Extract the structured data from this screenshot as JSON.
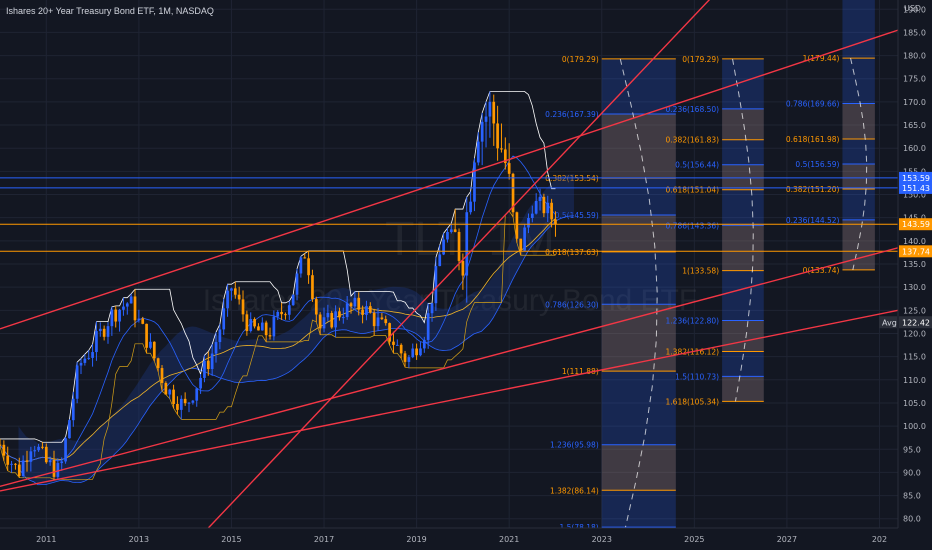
{
  "header": {
    "title": "Ishares 20+ Year Treasury Bond ETF, 1M, NASDAQ"
  },
  "watermark": {
    "symbol": "TLT, 1M",
    "name": "Ishares 20+ Year Treasury Bond ETF"
  },
  "colors": {
    "background": "#131722",
    "grid": "#1f2433",
    "up": "#2962ff",
    "down": "#ff9800",
    "trend": "#f23645",
    "fib_blue": "#2962ff",
    "fib_orange": "#ff9800",
    "cloud": "#1e3a8a",
    "white": "#ffffff"
  },
  "chart_data": {
    "type": "candlestick",
    "currency_label": "USD",
    "x_ticks": [
      "2011",
      "2013",
      "2015",
      "2017",
      "2019",
      "2021",
      "2023",
      "2025",
      "2027",
      "202"
    ],
    "y_ticks": [
      80,
      85,
      90,
      95,
      100,
      105,
      110,
      115,
      120,
      125,
      130,
      135,
      140,
      145,
      150,
      155,
      160,
      165,
      170,
      175,
      180,
      185,
      190
    ],
    "ylim": [
      78,
      192
    ],
    "xlim": [
      2010.0,
      2029.4
    ],
    "price_labels": [
      {
        "value": 153.59,
        "text": "153.59",
        "color": "#2962ff"
      },
      {
        "value": 151.43,
        "text": "151.43",
        "color": "#2962ff"
      },
      {
        "value": 143.59,
        "text": "143.59",
        "color": "#ff9800"
      },
      {
        "value": 137.74,
        "text": "137.74",
        "color": "#ff9800"
      },
      {
        "value": 122.42,
        "text": "122.42",
        "color": "#2a2e39"
      }
    ],
    "avg_label": "Avg",
    "horizontal_lines": [
      {
        "value": 153.59,
        "color": "#2962ff"
      },
      {
        "value": 151.43,
        "color": "#2962ff"
      },
      {
        "value": 143.59,
        "color": "#ff9800"
      },
      {
        "value": 137.74,
        "color": "#ff9800"
      }
    ],
    "candles_anchor": [
      [
        2010.0,
        96
      ],
      [
        2010.4,
        90
      ],
      [
        2010.7,
        97
      ],
      [
        2011.0,
        92
      ],
      [
        2011.3,
        90
      ],
      [
        2011.7,
        113
      ],
      [
        2012.0,
        117
      ],
      [
        2012.4,
        124
      ],
      [
        2012.8,
        127
      ],
      [
        2013.2,
        118
      ],
      [
        2013.6,
        108
      ],
      [
        2014.0,
        104
      ],
      [
        2014.6,
        116
      ],
      [
        2015.0,
        130
      ],
      [
        2015.4,
        121
      ],
      [
        2015.8,
        120
      ],
      [
        2016.3,
        128
      ],
      [
        2016.6,
        138
      ],
      [
        2016.9,
        121
      ],
      [
        2017.4,
        125
      ],
      [
        2017.8,
        126
      ],
      [
        2018.3,
        121
      ],
      [
        2018.8,
        114
      ],
      [
        2019.2,
        121
      ],
      [
        2019.6,
        142
      ],
      [
        2020.0,
        138
      ],
      [
        2020.3,
        166
      ],
      [
        2020.6,
        168
      ],
      [
        2020.9,
        158
      ],
      [
        2021.2,
        137
      ],
      [
        2021.5,
        148
      ],
      [
        2021.8,
        147
      ],
      [
        2022.0,
        143.59
      ]
    ],
    "trend_lines": [
      {
        "from": [
          2010.0,
          121
        ],
        "to": [
          2029.4,
          185.5
        ]
      },
      {
        "from": [
          2010.0,
          87
        ],
        "to": [
          2029.4,
          138.5
        ]
      },
      {
        "from": [
          2010.0,
          86
        ],
        "to": [
          2029.4,
          125
        ]
      },
      {
        "from": [
          2014.5,
          78
        ],
        "to": [
          2029.4,
          235
        ]
      }
    ],
    "fib_blocks": [
      {
        "x0": 2023.0,
        "x1": 2024.6,
        "top": 179.29,
        "bottom": 78.18,
        "levels": [
          {
            "value": 179.29,
            "label": "0(179.29)",
            "color": "#ff9800"
          },
          {
            "value": 167.39,
            "label": "0.236(167.39)",
            "color": "#2962ff"
          },
          {
            "value": 153.54,
            "label": "0.382(153.54)",
            "color": "#ff9800"
          },
          {
            "value": 145.59,
            "label": "0.5(145.59)",
            "color": "#2962ff"
          },
          {
            "value": 137.63,
            "label": "0.618(137.63)",
            "color": "#ff9800"
          },
          {
            "value": 126.3,
            "label": "0.786(126.30)",
            "color": "#2962ff"
          },
          {
            "value": 111.88,
            "label": "1(111.88)",
            "color": "#ff9800"
          },
          {
            "value": 95.98,
            "label": "1.236(95.98)",
            "color": "#2962ff"
          },
          {
            "value": 86.14,
            "label": "1.382(86.14)",
            "color": "#ff9800"
          },
          {
            "value": 78.18,
            "label": "1.5(78.18)",
            "color": "#2962ff"
          }
        ]
      },
      {
        "x0": 2025.6,
        "x1": 2026.5,
        "top": 179.29,
        "bottom": 105.34,
        "levels": [
          {
            "value": 179.29,
            "label": "0(179.29)",
            "color": "#ff9800"
          },
          {
            "value": 168.5,
            "label": "0.236(168.50)",
            "color": "#2962ff"
          },
          {
            "value": 161.83,
            "label": "0.382(161.83)",
            "color": "#ff9800"
          },
          {
            "value": 156.44,
            "label": "0.5(156.44)",
            "color": "#2962ff"
          },
          {
            "value": 151.04,
            "label": "0.618(151.04)",
            "color": "#ff9800"
          },
          {
            "value": 143.36,
            "label": "0.786(143.36)",
            "color": "#2962ff"
          },
          {
            "value": 133.58,
            "label": "1(133.58)",
            "color": "#ff9800"
          },
          {
            "value": 122.8,
            "label": "1.236(122.80)",
            "color": "#2962ff"
          },
          {
            "value": 116.12,
            "label": "1.382(116.12)",
            "color": "#ff9800"
          },
          {
            "value": 110.73,
            "label": "1.5(110.73)",
            "color": "#2962ff"
          },
          {
            "value": 105.34,
            "label": "1.618(105.34)",
            "color": "#ff9800"
          }
        ]
      },
      {
        "x0": 2028.2,
        "x1": 2028.9,
        "top": 192,
        "bottom": 133.74,
        "levels": [
          {
            "value": 179.44,
            "label": "1(179.44)",
            "color": "#ff9800"
          },
          {
            "value": 169.66,
            "label": "0.786(169.66)",
            "color": "#2962ff"
          },
          {
            "value": 161.98,
            "label": "0.618(161.98)",
            "color": "#ff9800"
          },
          {
            "value": 156.59,
            "label": "0.5(156.59)",
            "color": "#2962ff"
          },
          {
            "value": 151.2,
            "label": "0.382(151.20)",
            "color": "#ff9800"
          },
          {
            "value": 144.52,
            "label": "0.236(144.52)",
            "color": "#2962ff"
          },
          {
            "value": 133.74,
            "label": "0(133.74)",
            "color": "#ff9800"
          }
        ]
      }
    ]
  }
}
